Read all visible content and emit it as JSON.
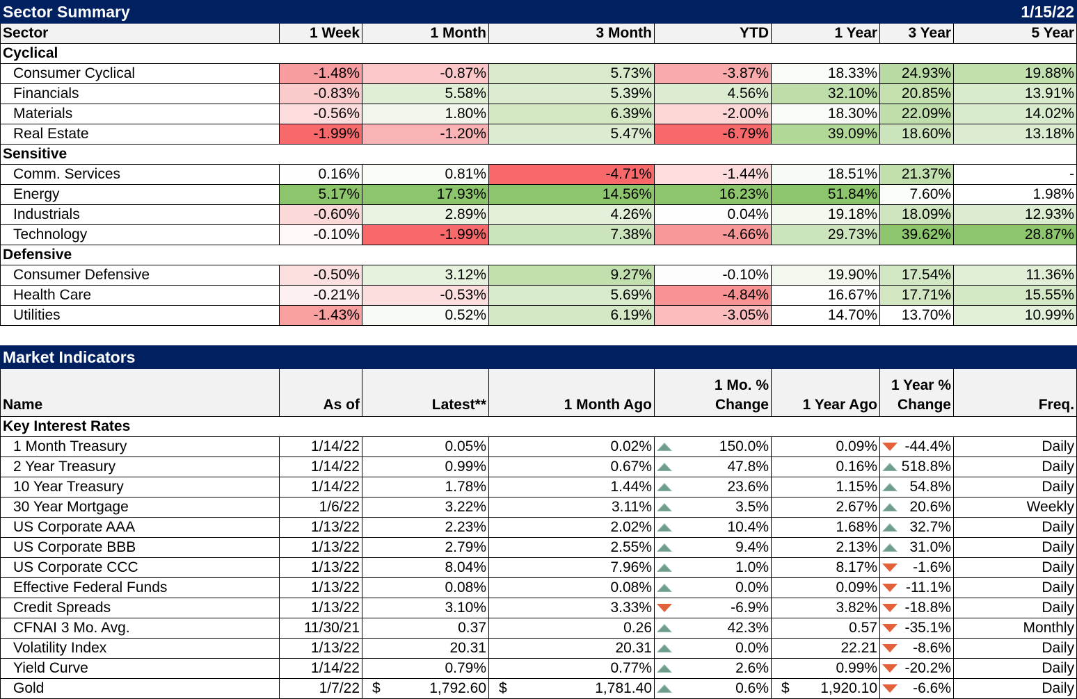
{
  "sector_summary": {
    "title": "Sector Summary",
    "date": "1/15/22",
    "headers": [
      "Sector",
      "1 Week",
      "1 Month",
      "3 Month",
      "YTD",
      "1 Year",
      "3 Year",
      "5 Year"
    ],
    "groups": [
      {
        "name": "Cyclical",
        "rows": [
          {
            "name": "Consumer Cyclical",
            "values": [
              "-1.48%",
              "-0.87%",
              "5.73%",
              "-3.87%",
              "18.33%",
              "24.93%",
              "19.88%"
            ],
            "colors": [
              "#f89d9f",
              "#fbc7c8",
              "#d8eac9",
              "#f9aaab",
              "#f9fbf7",
              "#b9dba3",
              "#c2dfae"
            ]
          },
          {
            "name": "Financials",
            "values": [
              "-0.83%",
              "5.58%",
              "5.39%",
              "4.56%",
              "32.10%",
              "20.85%",
              "13.91%"
            ],
            "colors": [
              "#fbcbcc",
              "#dfeed4",
              "#dcecd0",
              "#dcecd0",
              "#bedda8",
              "#c3e0ae",
              "#d9ebcd"
            ]
          },
          {
            "name": "Materials",
            "values": [
              "-0.56%",
              "1.80%",
              "6.39%",
              "-2.00%",
              "18.30%",
              "22.09%",
              "14.02%"
            ],
            "colors": [
              "#fcdcdc",
              "#f2f7ed",
              "#d3e8c3",
              "#fcd5d5",
              "#f9fbf7",
              "#c0deab",
              "#d9ebcd"
            ]
          },
          {
            "name": "Real Estate",
            "values": [
              "-1.99%",
              "-1.20%",
              "5.47%",
              "-6.79%",
              "39.09%",
              "18.60%",
              "13.18%"
            ],
            "colors": [
              "#f8696b",
              "#fab3b4",
              "#dcecd0",
              "#f8696b",
              "#b1d897",
              "#cce4bb",
              "#dcecd0"
            ]
          }
        ]
      },
      {
        "name": "Sensitive",
        "rows": [
          {
            "name": "Comm. Services",
            "values": [
              "0.16%",
              "0.81%",
              "-4.71%",
              "-1.44%",
              "18.51%",
              "21.37%",
              "-"
            ],
            "colors": [
              "#fdfefd",
              "#fafcf8",
              "#f8696b",
              "#fcdcdc",
              "#f8fbf5",
              "#c2dfae",
              "#ffffff"
            ]
          },
          {
            "name": "Energy",
            "values": [
              "5.17%",
              "17.93%",
              "14.56%",
              "16.23%",
              "51.84%",
              "7.60%",
              "1.98%"
            ],
            "colors": [
              "#8cc56c",
              "#8cc56c",
              "#8cc56c",
              "#8cc56c",
              "#8cc56c",
              "#fbfdf9",
              "#ffffff"
            ]
          },
          {
            "name": "Industrials",
            "values": [
              "-0.60%",
              "2.89%",
              "4.26%",
              "0.04%",
              "19.18%",
              "18.09%",
              "12.93%"
            ],
            "colors": [
              "#fcd9d9",
              "#eaf3e2",
              "#e4f0da",
              "#fdfefd",
              "#f4f9f0",
              "#cfe5bf",
              "#dcecd0"
            ]
          },
          {
            "name": "Technology",
            "values": [
              "-0.10%",
              "-1.99%",
              "7.38%",
              "-4.66%",
              "29.73%",
              "39.62%",
              "28.87%"
            ],
            "colors": [
              "#fef8f8",
              "#f8696b",
              "#cce4bb",
              "#f99899",
              "#cce4bb",
              "#8cc56c",
              "#8cc56c"
            ]
          }
        ]
      },
      {
        "name": "Defensive",
        "rows": [
          {
            "name": "Consumer Defensive",
            "values": [
              "-0.50%",
              "3.12%",
              "9.27%",
              "-0.10%",
              "19.90%",
              "17.54%",
              "11.36%"
            ],
            "colors": [
              "#fcdfdf",
              "#e7f2de",
              "#c2dfae",
              "#fefdfd",
              "#f2f8ed",
              "#d2e7c3",
              "#e2efd7"
            ]
          },
          {
            "name": "Health Care",
            "values": [
              "-0.21%",
              "-0.53%",
              "5.69%",
              "-4.84%",
              "16.67%",
              "17.71%",
              "15.55%"
            ],
            "colors": [
              "#fdf0f0",
              "#fcdede",
              "#d9ebcd",
              "#f99293",
              "#ffffff",
              "#d1e6c1",
              "#d3e8c4"
            ]
          },
          {
            "name": "Utilities",
            "values": [
              "-1.43%",
              "0.52%",
              "6.19%",
              "-3.05%",
              "14.70%",
              "13.70%",
              "10.99%"
            ],
            "colors": [
              "#f9a0a1",
              "#f8fbf5",
              "#d4e8c5",
              "#fbbcbd",
              "#ffffff",
              "#ffffff",
              "#e3f0d9"
            ]
          }
        ]
      }
    ]
  },
  "market_indicators": {
    "title": "Market Indicators",
    "headers": {
      "name": "Name",
      "as_of": "As of",
      "latest": "Latest**",
      "month_ago": "1 Month Ago",
      "mo_change_1": "1 Mo. %",
      "mo_change_2": "Change",
      "year_ago": "1 Year Ago",
      "yr_change_1": "1 Year %",
      "yr_change_2": "Change",
      "freq": "Freq."
    },
    "group": "Key Interest Rates",
    "rows": [
      {
        "name": "1 Month Treasury",
        "as_of": "1/14/22",
        "latest": "0.05%",
        "month_ago": "0.02%",
        "mo_dir": "up",
        "mo_change": "150.0%",
        "year_ago": "0.09%",
        "yr_dir": "down",
        "yr_change": "-44.4%",
        "freq": "Daily"
      },
      {
        "name": "2 Year Treasury",
        "as_of": "1/14/22",
        "latest": "0.99%",
        "month_ago": "0.67%",
        "mo_dir": "up",
        "mo_change": "47.8%",
        "year_ago": "0.16%",
        "yr_dir": "up",
        "yr_change": "518.8%",
        "freq": "Daily"
      },
      {
        "name": "10 Year Treasury",
        "as_of": "1/14/22",
        "latest": "1.78%",
        "month_ago": "1.44%",
        "mo_dir": "up",
        "mo_change": "23.6%",
        "year_ago": "1.15%",
        "yr_dir": "up",
        "yr_change": "54.8%",
        "freq": "Daily"
      },
      {
        "name": "30 Year Mortgage",
        "as_of": "1/6/22",
        "latest": "3.22%",
        "month_ago": "3.11%",
        "mo_dir": "up",
        "mo_change": "3.5%",
        "year_ago": "2.67%",
        "yr_dir": "up",
        "yr_change": "20.6%",
        "freq": "Weekly"
      },
      {
        "name": "US Corporate AAA",
        "as_of": "1/13/22",
        "latest": "2.23%",
        "month_ago": "2.02%",
        "mo_dir": "up",
        "mo_change": "10.4%",
        "year_ago": "1.68%",
        "yr_dir": "up",
        "yr_change": "32.7%",
        "freq": "Daily"
      },
      {
        "name": "US Corporate BBB",
        "as_of": "1/13/22",
        "latest": "2.79%",
        "month_ago": "2.55%",
        "mo_dir": "up",
        "mo_change": "9.4%",
        "year_ago": "2.13%",
        "yr_dir": "up",
        "yr_change": "31.0%",
        "freq": "Daily"
      },
      {
        "name": "US Corporate CCC",
        "as_of": "1/13/22",
        "latest": "8.04%",
        "month_ago": "7.96%",
        "mo_dir": "up",
        "mo_change": "1.0%",
        "year_ago": "8.17%",
        "yr_dir": "down",
        "yr_change": "-1.6%",
        "freq": "Daily"
      },
      {
        "name": "Effective Federal Funds",
        "as_of": "1/13/22",
        "latest": "0.08%",
        "month_ago": "0.08%",
        "mo_dir": "up",
        "mo_change": "0.0%",
        "year_ago": "0.09%",
        "yr_dir": "down",
        "yr_change": "-11.1%",
        "freq": "Daily"
      },
      {
        "name": "Credit Spreads",
        "as_of": "1/13/22",
        "latest": "3.10%",
        "month_ago": "3.33%",
        "mo_dir": "down",
        "mo_change": "-6.9%",
        "year_ago": "3.82%",
        "yr_dir": "down",
        "yr_change": "-18.8%",
        "freq": "Daily"
      },
      {
        "name": "CFNAI 3 Mo. Avg.",
        "as_of": "11/30/21",
        "latest": "0.37",
        "month_ago": "0.26",
        "mo_dir": "up",
        "mo_change": "42.3%",
        "year_ago": "0.57",
        "yr_dir": "down",
        "yr_change": "-35.1%",
        "freq": "Monthly"
      },
      {
        "name": "Volatility Index",
        "as_of": "1/13/22",
        "latest": "20.31",
        "month_ago": "20.31",
        "mo_dir": "up",
        "mo_change": "0.0%",
        "year_ago": "22.21",
        "yr_dir": "down",
        "yr_change": "-8.6%",
        "freq": "Daily"
      },
      {
        "name": "Yield Curve",
        "as_of": "1/14/22",
        "latest": "0.79%",
        "month_ago": "0.77%",
        "mo_dir": "up",
        "mo_change": "2.6%",
        "year_ago": "0.99%",
        "yr_dir": "down",
        "yr_change": "-20.2%",
        "freq": "Daily"
      },
      {
        "name": "Gold",
        "as_of": "1/7/22",
        "latest_currency": "$",
        "latest": "1,792.60",
        "month_ago_currency": "$",
        "month_ago": "1,781.40",
        "mo_dir": "up",
        "mo_change": "0.6%",
        "year_ago_currency": "$",
        "year_ago": "1,920.10",
        "yr_dir": "down",
        "yr_change": "-6.6%",
        "freq": "Daily"
      }
    ]
  }
}
